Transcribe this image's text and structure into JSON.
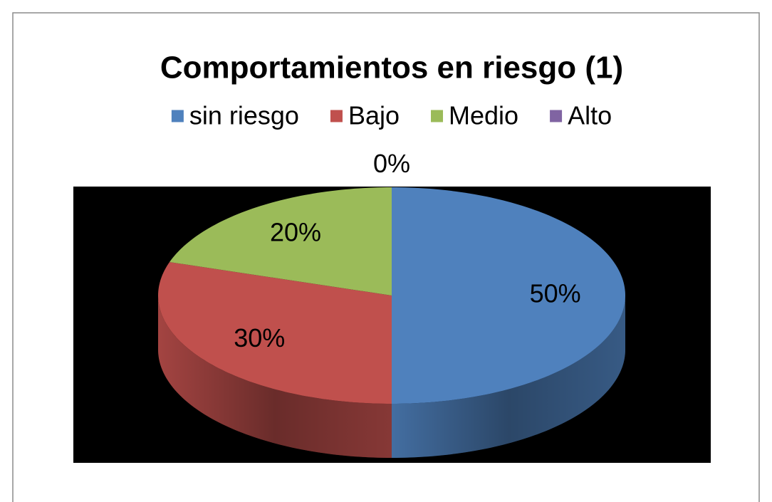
{
  "chart_data": {
    "type": "pie",
    "title": "Comportamientos en riesgo (1)",
    "categories": [
      "sin riesgo",
      "Bajo",
      "Medio",
      "Alto"
    ],
    "values": [
      50,
      30,
      20,
      0
    ],
    "value_labels": [
      "50%",
      "30%",
      "20%",
      "0%"
    ],
    "colors": [
      "#4f81bd",
      "#c0504d",
      "#9bbb59",
      "#8064a2"
    ],
    "legend": "top"
  }
}
